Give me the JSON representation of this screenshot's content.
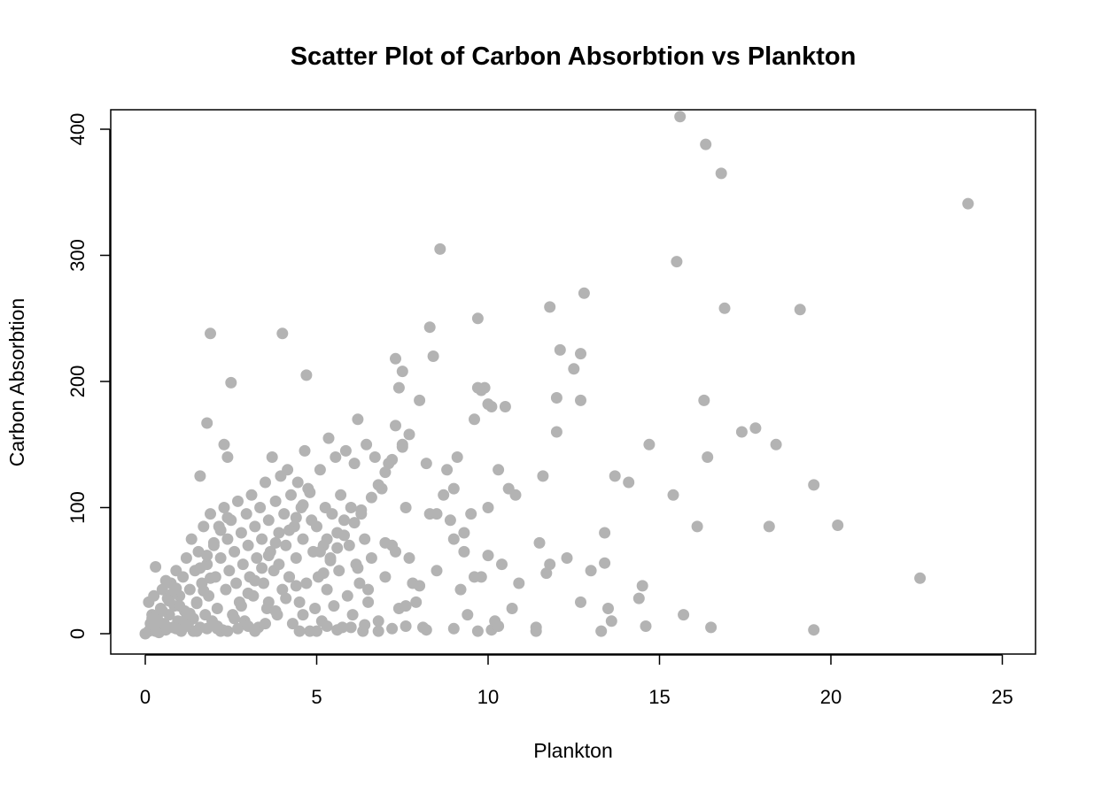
{
  "chart_data": {
    "type": "scatter",
    "title": "Scatter Plot of Carbon Absorbtion vs Plankton",
    "xlabel": "Plankton",
    "ylabel": "Carbon Absorbtion",
    "xlim": [
      0,
      25
    ],
    "ylim": [
      0,
      400
    ],
    "x_ticks": [
      0,
      5,
      10,
      15,
      20,
      25
    ],
    "y_ticks": [
      0,
      100,
      200,
      300,
      400
    ],
    "x_tick_labels": [
      "0",
      "5",
      "10",
      "15",
      "20",
      "25"
    ],
    "y_tick_labels": [
      "0",
      "100",
      "200",
      "300",
      "400"
    ],
    "grid": false,
    "legend": "none",
    "point_color": "#b3b3b3",
    "series": [
      {
        "points": [
          [
            0.0,
            0
          ],
          [
            0.1,
            2
          ],
          [
            0.15,
            8
          ],
          [
            0.2,
            15
          ],
          [
            0.1,
            25
          ],
          [
            0.3,
            5
          ],
          [
            0.25,
            30
          ],
          [
            0.35,
            12
          ],
          [
            0.4,
            1
          ],
          [
            0.45,
            20
          ],
          [
            0.5,
            35
          ],
          [
            0.55,
            8
          ],
          [
            0.6,
            3
          ],
          [
            0.65,
            28
          ],
          [
            0.7,
            15
          ],
          [
            0.75,
            40
          ],
          [
            0.8,
            5
          ],
          [
            0.85,
            22
          ],
          [
            0.9,
            50
          ],
          [
            0.95,
            10
          ],
          [
            1.0,
            30
          ],
          [
            1.05,
            2
          ],
          [
            1.1,
            45
          ],
          [
            1.15,
            18
          ],
          [
            1.2,
            60
          ],
          [
            1.25,
            8
          ],
          [
            1.3,
            35
          ],
          [
            1.35,
            75
          ],
          [
            1.4,
            12
          ],
          [
            1.45,
            50
          ],
          [
            1.5,
            25
          ],
          [
            1.55,
            65
          ],
          [
            1.6,
            5
          ],
          [
            1.65,
            40
          ],
          [
            1.7,
            85
          ],
          [
            1.75,
            15
          ],
          [
            1.8,
            55
          ],
          [
            1.85,
            30
          ],
          [
            1.9,
            95
          ],
          [
            1.95,
            10
          ],
          [
            2.0,
            70
          ],
          [
            2.05,
            45
          ],
          [
            2.1,
            20
          ],
          [
            2.15,
            85
          ],
          [
            2.2,
            60
          ],
          [
            2.25,
            3
          ],
          [
            2.3,
            100
          ],
          [
            2.35,
            35
          ],
          [
            2.4,
            75
          ],
          [
            2.45,
            50
          ],
          [
            2.5,
            90
          ],
          [
            2.55,
            15
          ],
          [
            2.6,
            65
          ],
          [
            2.65,
            40
          ],
          [
            2.7,
            105
          ],
          [
            2.75,
            25
          ],
          [
            2.8,
            80
          ],
          [
            2.85,
            55
          ],
          [
            2.9,
            10
          ],
          [
            2.95,
            95
          ],
          [
            3.0,
            70
          ],
          [
            3.05,
            45
          ],
          [
            3.1,
            110
          ],
          [
            3.15,
            30
          ],
          [
            3.2,
            85
          ],
          [
            3.25,
            60
          ],
          [
            3.3,
            5
          ],
          [
            3.35,
            100
          ],
          [
            3.4,
            75
          ],
          [
            3.45,
            40
          ],
          [
            3.5,
            120
          ],
          [
            3.55,
            20
          ],
          [
            3.6,
            90
          ],
          [
            3.65,
            65
          ],
          [
            3.7,
            140
          ],
          [
            3.75,
            50
          ],
          [
            3.8,
            105
          ],
          [
            3.85,
            15
          ],
          [
            3.9,
            80
          ],
          [
            3.95,
            125
          ],
          [
            4.0,
            35
          ],
          [
            4.05,
            95
          ],
          [
            4.1,
            70
          ],
          [
            4.15,
            130
          ],
          [
            4.2,
            45
          ],
          [
            4.25,
            110
          ],
          [
            4.3,
            8
          ],
          [
            4.35,
            85
          ],
          [
            4.4,
            60
          ],
          [
            4.45,
            120
          ],
          [
            4.5,
            25
          ],
          [
            4.55,
            100
          ],
          [
            4.6,
            75
          ],
          [
            4.65,
            145
          ],
          [
            4.7,
            40
          ],
          [
            4.75,
            115
          ],
          [
            4.8,
            2
          ],
          [
            4.85,
            90
          ],
          [
            4.9,
            65
          ],
          [
            4.95,
            20
          ],
          [
            5.0,
            85
          ],
          [
            5.05,
            45
          ],
          [
            5.1,
            130
          ],
          [
            5.15,
            10
          ],
          [
            5.2,
            70
          ],
          [
            5.25,
            100
          ],
          [
            5.3,
            35
          ],
          [
            5.35,
            155
          ],
          [
            5.4,
            60
          ],
          [
            5.45,
            95
          ],
          [
            5.5,
            22
          ],
          [
            5.55,
            140
          ],
          [
            5.6,
            80
          ],
          [
            5.65,
            50
          ],
          [
            5.7,
            110
          ],
          [
            5.75,
            5
          ],
          [
            5.8,
            90
          ],
          [
            5.85,
            145
          ],
          [
            5.9,
            30
          ],
          [
            5.95,
            70
          ],
          [
            6.0,
            100
          ],
          [
            6.05,
            15
          ],
          [
            6.1,
            135
          ],
          [
            6.15,
            55
          ],
          [
            6.2,
            170
          ],
          [
            6.25,
            40
          ],
          [
            6.3,
            95
          ],
          [
            6.35,
            2
          ],
          [
            6.4,
            75
          ],
          [
            6.45,
            150
          ],
          [
            6.5,
            25
          ],
          [
            6.6,
            60
          ],
          [
            6.7,
            140
          ],
          [
            6.8,
            10
          ],
          [
            6.9,
            115
          ],
          [
            7.0,
            45
          ],
          [
            7.1,
            135
          ],
          [
            7.2,
            70
          ],
          [
            7.3,
            165
          ],
          [
            7.4,
            20
          ],
          [
            7.5,
            150
          ],
          [
            7.6,
            100
          ],
          [
            7.7,
            60
          ],
          [
            7.8,
            40
          ],
          [
            7.9,
            25
          ],
          [
            8.0,
            185
          ],
          [
            8.1,
            5
          ],
          [
            8.2,
            135
          ],
          [
            8.3,
            95
          ],
          [
            8.4,
            220
          ],
          [
            8.5,
            50
          ],
          [
            8.6,
            305
          ],
          [
            8.7,
            110
          ],
          [
            8.8,
            130
          ],
          [
            8.9,
            90
          ],
          [
            9.0,
            75
          ],
          [
            9.1,
            140
          ],
          [
            9.2,
            35
          ],
          [
            9.3,
            80
          ],
          [
            9.4,
            15
          ],
          [
            9.5,
            95
          ],
          [
            9.6,
            170
          ],
          [
            9.7,
            250
          ],
          [
            9.8,
            45
          ],
          [
            9.9,
            195
          ],
          [
            10.0,
            100
          ],
          [
            10.1,
            180
          ],
          [
            10.2,
            10
          ],
          [
            10.3,
            130
          ],
          [
            10.4,
            55
          ],
          [
            10.5,
            180
          ],
          [
            10.6,
            115
          ],
          [
            10.7,
            20
          ],
          [
            10.8,
            110
          ],
          [
            10.9,
            40
          ],
          [
            11.4,
            5
          ],
          [
            11.6,
            125
          ],
          [
            11.8,
            55
          ],
          [
            12.0,
            160
          ],
          [
            12.1,
            225
          ],
          [
            12.3,
            60
          ],
          [
            12.5,
            210
          ],
          [
            12.7,
            185
          ],
          [
            12.8,
            270
          ],
          [
            13.0,
            50
          ],
          [
            13.3,
            2
          ],
          [
            13.4,
            80
          ],
          [
            13.5,
            20
          ],
          [
            13.7,
            125
          ],
          [
            14.1,
            120
          ],
          [
            14.5,
            38
          ],
          [
            14.7,
            150
          ],
          [
            15.4,
            110
          ],
          [
            15.5,
            295
          ],
          [
            15.6,
            410
          ],
          [
            15.7,
            15
          ],
          [
            16.1,
            85
          ],
          [
            16.3,
            185
          ],
          [
            16.35,
            388
          ],
          [
            16.4,
            140
          ],
          [
            16.5,
            5
          ],
          [
            16.8,
            365
          ],
          [
            16.9,
            258
          ],
          [
            17.4,
            160
          ],
          [
            17.8,
            163
          ],
          [
            18.2,
            85
          ],
          [
            18.4,
            150
          ],
          [
            19.1,
            257
          ],
          [
            19.5,
            118
          ],
          [
            19.5,
            3
          ],
          [
            20.2,
            86
          ],
          [
            22.6,
            44
          ],
          [
            24.0,
            341
          ],
          [
            1.9,
            238
          ],
          [
            4.0,
            238
          ],
          [
            2.5,
            199
          ],
          [
            4.7,
            205
          ],
          [
            1.8,
            167
          ],
          [
            2.3,
            150
          ],
          [
            1.6,
            125
          ],
          [
            2.4,
            140
          ],
          [
            0.3,
            53
          ],
          [
            8.3,
            243
          ],
          [
            7.3,
            218
          ],
          [
            7.5,
            208
          ],
          [
            7.4,
            195
          ],
          [
            9.7,
            195
          ],
          [
            9.8,
            193
          ],
          [
            10.0,
            182
          ],
          [
            11.8,
            259
          ],
          [
            12.7,
            222
          ],
          [
            11.7,
            48
          ],
          [
            12.0,
            187
          ],
          [
            11.5,
            72
          ],
          [
            11.4,
            2
          ],
          [
            12.7,
            25
          ],
          [
            13.4,
            56
          ],
          [
            13.6,
            10
          ],
          [
            14.4,
            28
          ],
          [
            14.6,
            6
          ],
          [
            3.2,
            2
          ],
          [
            3.5,
            8
          ],
          [
            3.8,
            18
          ],
          [
            4.1,
            28
          ],
          [
            4.4,
            38
          ],
          [
            5.2,
            48
          ],
          [
            5.4,
            58
          ],
          [
            5.6,
            68
          ],
          [
            5.8,
            78
          ],
          [
            6.1,
            88
          ],
          [
            6.3,
            98
          ],
          [
            6.6,
            108
          ],
          [
            6.8,
            118
          ],
          [
            7.0,
            128
          ],
          [
            7.2,
            138
          ],
          [
            7.5,
            148
          ],
          [
            7.7,
            158
          ],
          [
            2.2,
            2
          ],
          [
            2.6,
            12
          ],
          [
            2.8,
            22
          ],
          [
            3.0,
            32
          ],
          [
            3.2,
            42
          ],
          [
            3.4,
            52
          ],
          [
            3.6,
            62
          ],
          [
            3.8,
            72
          ],
          [
            4.2,
            82
          ],
          [
            4.4,
            92
          ],
          [
            4.6,
            102
          ],
          [
            4.8,
            112
          ],
          [
            0.6,
            42
          ],
          [
            0.8,
            32
          ],
          [
            1.0,
            22
          ],
          [
            1.2,
            12
          ],
          [
            1.4,
            2
          ],
          [
            1.6,
            52
          ],
          [
            1.8,
            62
          ],
          [
            2.0,
            72
          ],
          [
            2.2,
            82
          ],
          [
            2.4,
            92
          ],
          [
            0.2,
            12
          ],
          [
            0.5,
            18
          ],
          [
            0.7,
            26
          ],
          [
            0.9,
            36
          ],
          [
            1.1,
            8
          ],
          [
            1.3,
            16
          ],
          [
            1.5,
            24
          ],
          [
            1.7,
            34
          ],
          [
            1.9,
            44
          ],
          [
            2.1,
            4
          ],
          [
            0.3,
            2
          ],
          [
            0.6,
            6
          ],
          [
            0.9,
            4
          ],
          [
            1.2,
            6
          ],
          [
            1.5,
            2
          ],
          [
            1.8,
            4
          ],
          [
            2.1,
            6
          ],
          [
            2.4,
            2
          ],
          [
            2.7,
            4
          ],
          [
            3.0,
            6
          ],
          [
            5.0,
            2
          ],
          [
            5.3,
            6
          ],
          [
            5.6,
            3
          ],
          [
            6.0,
            5
          ],
          [
            6.4,
            7
          ],
          [
            6.8,
            2
          ],
          [
            7.2,
            4
          ],
          [
            7.6,
            6
          ],
          [
            8.2,
            3
          ],
          [
            9.0,
            4
          ],
          [
            9.7,
            2
          ],
          [
            10.1,
            3
          ],
          [
            10.3,
            6
          ],
          [
            4.5,
            2
          ],
          [
            4.6,
            15
          ],
          [
            4.2,
            45
          ],
          [
            3.9,
            55
          ],
          [
            3.6,
            25
          ],
          [
            5.1,
            65
          ],
          [
            5.3,
            75
          ],
          [
            6.2,
            52
          ],
          [
            6.5,
            35
          ],
          [
            7.0,
            72
          ],
          [
            7.3,
            65
          ],
          [
            7.6,
            22
          ],
          [
            8.0,
            38
          ],
          [
            8.5,
            95
          ],
          [
            9.0,
            115
          ],
          [
            9.3,
            65
          ],
          [
            9.6,
            45
          ],
          [
            10.0,
            62
          ]
        ]
      }
    ]
  }
}
